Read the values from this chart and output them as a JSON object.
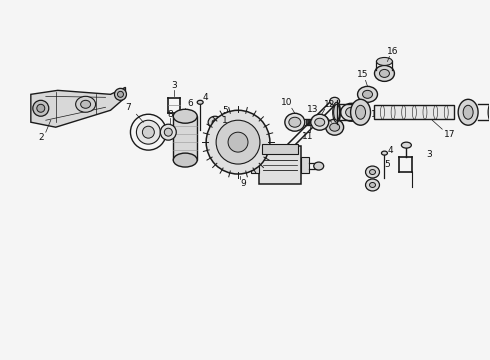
{
  "background_color": "#f5f5f5",
  "line_color": "#1a1a1a",
  "text_color": "#111111",
  "fig_width": 4.9,
  "fig_height": 3.6,
  "dpi": 100
}
